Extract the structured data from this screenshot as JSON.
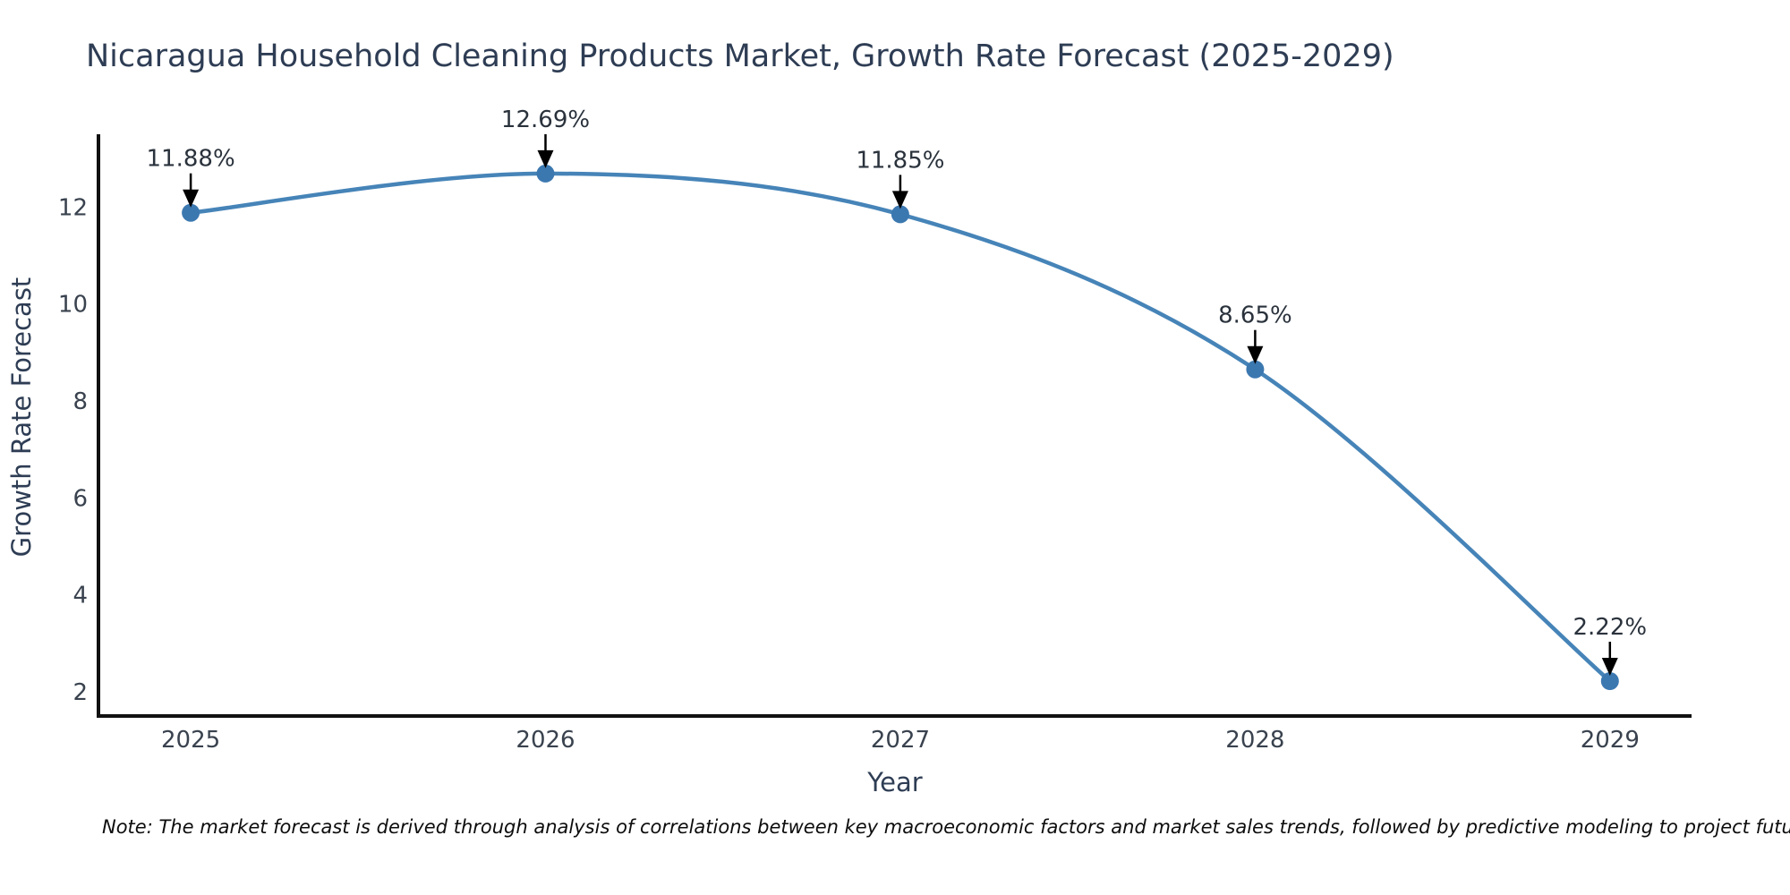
{
  "note": "Note: The market forecast is derived through analysis of correlations between key macroeconomic factors and market sales trends, followed by predictive modeling to project future sales",
  "colors": {
    "title-color": "#2e3d54",
    "tick-color": "#39424e",
    "axis-label-color": "#2e3d54",
    "annot-color": "#2a323c",
    "spine-color": "#111111",
    "line-color": "#4684b8",
    "marker-color": "#3c78b0",
    "arrow-color": "#000000",
    "note-color": "#0d0d0d",
    "bg": "#ffffff"
  },
  "chart_data": {
    "type": "line",
    "title": "Nicaragua Household Cleaning Products Market, Growth Rate Forecast (2025-2029)",
    "xlabel": "Year",
    "ylabel": "Growth Rate Forecast",
    "x": [
      2025,
      2026,
      2027,
      2028,
      2029
    ],
    "values": [
      11.88,
      12.69,
      11.85,
      8.65,
      2.22
    ],
    "point_labels": [
      "11.88%",
      "12.69%",
      "11.85%",
      "8.65%",
      "2.22%"
    ],
    "xticks": [
      "2025",
      "2026",
      "2027",
      "2028",
      "2029"
    ],
    "xtick_values": [
      2025,
      2026,
      2027,
      2028,
      2029
    ],
    "yticks": [
      "2",
      "4",
      "6",
      "8",
      "10",
      "12"
    ],
    "ytick_values": [
      2,
      4,
      6,
      8,
      10,
      12
    ],
    "xlim": [
      2024.74,
      2029.23
    ],
    "ylim": [
      1.5,
      13.5
    ],
    "grid": false,
    "legend": null,
    "curve": "spline",
    "marker": "circle",
    "annotation_style": "value label above point with downward black arrow"
  }
}
